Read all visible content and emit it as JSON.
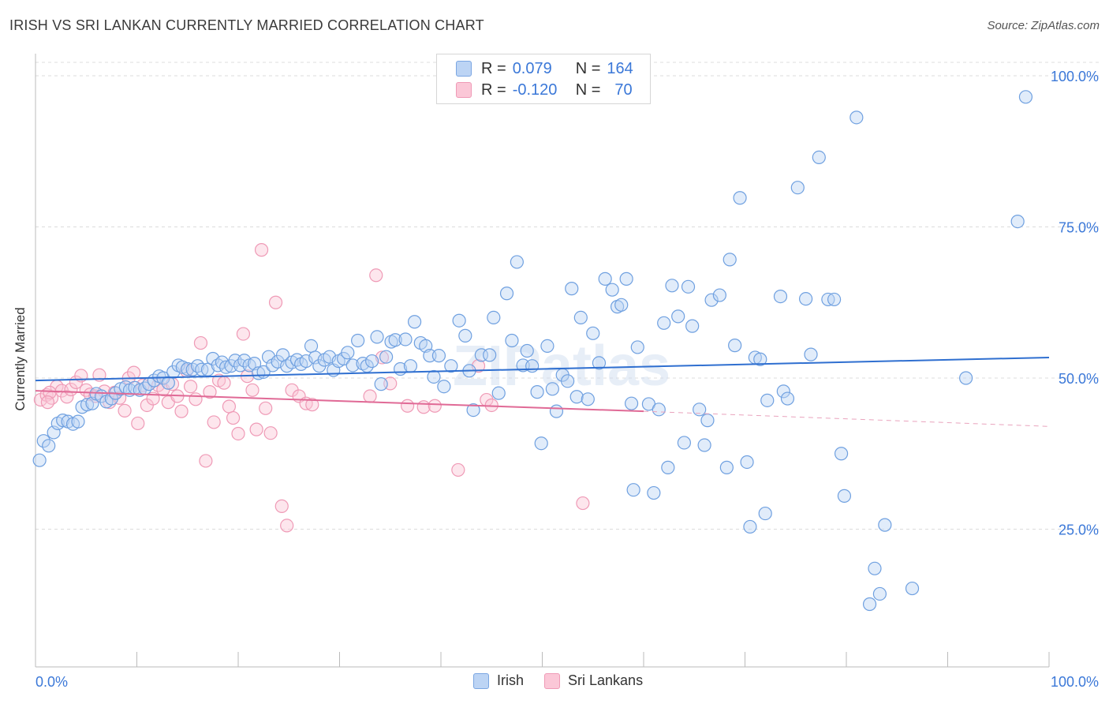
{
  "title": "IRISH VS SRI LANKAN CURRENTLY MARRIED CORRELATION CHART",
  "source": "Source: ZipAtlas.com",
  "watermark": "ZIPatlas",
  "legend": {
    "r_label": "R =",
    "n_label": "N =",
    "rows": [
      {
        "r": "0.079",
        "n": "164"
      },
      {
        "r": "-0.120",
        "n": "70"
      }
    ]
  },
  "bottom_legend": [
    "Irish",
    "Sri Lankans"
  ],
  "chart_data": {
    "type": "scatter",
    "title": "IRISH VS SRI LANKAN CURRENTLY MARRIED CORRELATION CHART",
    "xlabel": "",
    "ylabel": "Currently Married",
    "xlim": [
      0,
      100
    ],
    "ylim": [
      0,
      100
    ],
    "x_tick_labels": [
      "0.0%",
      "100.0%"
    ],
    "y_ticks": [
      25,
      50,
      75,
      100
    ],
    "y_tick_labels": [
      "25.0%",
      "50.0%",
      "75.0%",
      "100.0%"
    ],
    "grid": "horizontal dashed",
    "legend_position": "top-center",
    "colors": {
      "irish": "#6fa0e0",
      "irish_line": "#2f6fd0",
      "srilankan": "#f0a0bc",
      "srilankan_line": "#e06a96"
    },
    "series": [
      {
        "name": "Irish",
        "R": 0.079,
        "N": 164,
        "trend": {
          "x": [
            0,
            100
          ],
          "y": [
            49.6,
            53.4
          ]
        },
        "points": [
          [
            0.4,
            36.4
          ],
          [
            0.8,
            39.6
          ],
          [
            1.3,
            38.8
          ],
          [
            1.8,
            41.0
          ],
          [
            2.2,
            42.5
          ],
          [
            2.7,
            43.0
          ],
          [
            3.2,
            42.8
          ],
          [
            3.7,
            42.4
          ],
          [
            4.2,
            42.8
          ],
          [
            4.6,
            45.2
          ],
          [
            5.1,
            45.6
          ],
          [
            5.6,
            45.8
          ],
          [
            6.0,
            47.4
          ],
          [
            6.5,
            47.0
          ],
          [
            7.0,
            46.1
          ],
          [
            7.5,
            46.6
          ],
          [
            7.9,
            47.5
          ],
          [
            8.4,
            48.2
          ],
          [
            8.9,
            48.5
          ],
          [
            9.3,
            48.0
          ],
          [
            9.8,
            48.4
          ],
          [
            10.3,
            48.0
          ],
          [
            10.8,
            48.3
          ],
          [
            11.2,
            49.0
          ],
          [
            11.7,
            49.6
          ],
          [
            12.2,
            50.3
          ],
          [
            12.6,
            50.0
          ],
          [
            13.1,
            49.2
          ],
          [
            13.6,
            51.0
          ],
          [
            14.1,
            52.1
          ],
          [
            14.5,
            51.8
          ],
          [
            15.0,
            51.5
          ],
          [
            15.5,
            51.4
          ],
          [
            16.0,
            52.0
          ],
          [
            16.4,
            51.4
          ],
          [
            17.0,
            51.4
          ],
          [
            17.5,
            53.2
          ],
          [
            18.0,
            52.1
          ],
          [
            18.4,
            52.6
          ],
          [
            18.8,
            51.8
          ],
          [
            19.3,
            52.0
          ],
          [
            19.7,
            52.9
          ],
          [
            20.2,
            52.1
          ],
          [
            20.6,
            52.9
          ],
          [
            21.1,
            52.1
          ],
          [
            21.6,
            52.4
          ],
          [
            22.0,
            50.8
          ],
          [
            22.5,
            51.0
          ],
          [
            23.0,
            53.5
          ],
          [
            23.4,
            52.1
          ],
          [
            23.9,
            52.7
          ],
          [
            24.4,
            53.8
          ],
          [
            24.8,
            52.0
          ],
          [
            25.3,
            52.6
          ],
          [
            25.8,
            53.0
          ],
          [
            26.2,
            52.3
          ],
          [
            26.7,
            52.8
          ],
          [
            27.2,
            55.3
          ],
          [
            27.6,
            53.4
          ],
          [
            28.0,
            52.0
          ],
          [
            28.5,
            53.0
          ],
          [
            29.0,
            53.5
          ],
          [
            29.4,
            51.3
          ],
          [
            29.9,
            52.8
          ],
          [
            30.4,
            53.2
          ],
          [
            30.8,
            54.2
          ],
          [
            31.3,
            52.1
          ],
          [
            31.8,
            56.2
          ],
          [
            32.3,
            52.4
          ],
          [
            32.7,
            52.0
          ],
          [
            33.2,
            52.8
          ],
          [
            33.7,
            56.8
          ],
          [
            34.1,
            49.0
          ],
          [
            34.6,
            53.5
          ],
          [
            35.1,
            56.0
          ],
          [
            35.5,
            56.3
          ],
          [
            36.0,
            51.5
          ],
          [
            36.5,
            56.4
          ],
          [
            37.0,
            52.0
          ],
          [
            37.4,
            59.3
          ],
          [
            38.0,
            55.8
          ],
          [
            38.5,
            55.3
          ],
          [
            38.9,
            53.7
          ],
          [
            39.3,
            50.2
          ],
          [
            39.8,
            53.7
          ],
          [
            40.3,
            48.6
          ],
          [
            41.0,
            52.0
          ],
          [
            41.8,
            59.5
          ],
          [
            42.4,
            57.0
          ],
          [
            42.8,
            51.2
          ],
          [
            43.2,
            44.7
          ],
          [
            44.0,
            53.8
          ],
          [
            44.8,
            53.8
          ],
          [
            45.2,
            60.0
          ],
          [
            45.7,
            47.5
          ],
          [
            46.5,
            64.0
          ],
          [
            47.0,
            56.2
          ],
          [
            47.5,
            69.2
          ],
          [
            48.1,
            52.1
          ],
          [
            48.5,
            54.5
          ],
          [
            49.0,
            52.0
          ],
          [
            49.5,
            47.7
          ],
          [
            49.9,
            39.2
          ],
          [
            50.5,
            55.3
          ],
          [
            51.0,
            48.2
          ],
          [
            51.4,
            44.5
          ],
          [
            52.0,
            50.5
          ],
          [
            52.5,
            49.5
          ],
          [
            52.9,
            64.8
          ],
          [
            53.4,
            46.9
          ],
          [
            53.8,
            60.0
          ],
          [
            54.5,
            46.5
          ],
          [
            55.0,
            57.4
          ],
          [
            55.6,
            52.5
          ],
          [
            56.2,
            66.4
          ],
          [
            56.9,
            64.6
          ],
          [
            57.4,
            61.8
          ],
          [
            57.8,
            62.1
          ],
          [
            58.3,
            66.4
          ],
          [
            58.8,
            45.8
          ],
          [
            59.0,
            31.5
          ],
          [
            59.4,
            55.1
          ],
          [
            60.5,
            45.7
          ],
          [
            61.0,
            31.0
          ],
          [
            61.5,
            44.8
          ],
          [
            62.0,
            59.1
          ],
          [
            62.4,
            35.2
          ],
          [
            62.8,
            65.3
          ],
          [
            63.4,
            60.2
          ],
          [
            64.0,
            39.3
          ],
          [
            64.4,
            65.1
          ],
          [
            64.8,
            58.6
          ],
          [
            65.5,
            44.8
          ],
          [
            66.0,
            38.9
          ],
          [
            66.3,
            43.0
          ],
          [
            66.7,
            62.9
          ],
          [
            67.5,
            63.7
          ],
          [
            68.2,
            35.2
          ],
          [
            68.5,
            69.6
          ],
          [
            69.0,
            55.4
          ],
          [
            69.5,
            79.8
          ],
          [
            70.2,
            36.1
          ],
          [
            70.5,
            25.4
          ],
          [
            71.0,
            53.4
          ],
          [
            71.5,
            53.1
          ],
          [
            72.0,
            27.6
          ],
          [
            72.2,
            46.3
          ],
          [
            73.5,
            63.5
          ],
          [
            73.8,
            47.8
          ],
          [
            74.2,
            46.6
          ],
          [
            75.2,
            81.5
          ],
          [
            76.0,
            63.1
          ],
          [
            76.5,
            53.9
          ],
          [
            77.3,
            86.5
          ],
          [
            78.2,
            63.0
          ],
          [
            78.8,
            63.0
          ],
          [
            79.5,
            37.5
          ],
          [
            79.8,
            30.5
          ],
          [
            81.0,
            93.1
          ],
          [
            82.3,
            12.6
          ],
          [
            82.8,
            18.5
          ],
          [
            83.3,
            14.3
          ],
          [
            83.8,
            25.7
          ],
          [
            86.5,
            15.2
          ],
          [
            91.8,
            50.0
          ],
          [
            96.9,
            75.9
          ],
          [
            97.7,
            96.5
          ]
        ]
      },
      {
        "name": "Sri Lankans",
        "R": -0.12,
        "N": 70,
        "trend": {
          "x": [
            0,
            60
          ],
          "y": [
            47.9,
            44.5
          ]
        },
        "trend_extension": {
          "x": [
            60,
            100
          ],
          "y": [
            44.5,
            42.0
          ]
        },
        "points": [
          [
            0.5,
            46.4
          ],
          [
            1.1,
            47.2
          ],
          [
            1.6,
            46.7
          ],
          [
            2.1,
            48.6
          ],
          [
            2.6,
            47.9
          ],
          [
            3.1,
            46.9
          ],
          [
            3.5,
            48.1
          ],
          [
            4.0,
            49.3
          ],
          [
            4.5,
            50.4
          ],
          [
            5.0,
            48.0
          ],
          [
            5.4,
            47.3
          ],
          [
            5.9,
            47.0
          ],
          [
            6.3,
            50.5
          ],
          [
            6.8,
            47.8
          ],
          [
            7.3,
            46.0
          ],
          [
            7.8,
            47.6
          ],
          [
            8.3,
            46.7
          ],
          [
            8.8,
            44.6
          ],
          [
            9.2,
            50.0
          ],
          [
            9.7,
            50.9
          ],
          [
            10.1,
            42.5
          ],
          [
            10.6,
            48.8
          ],
          [
            11.0,
            45.5
          ],
          [
            11.6,
            46.6
          ],
          [
            12.1,
            48.8
          ],
          [
            12.6,
            48.1
          ],
          [
            13.1,
            46.0
          ],
          [
            13.5,
            49.0
          ],
          [
            14.0,
            47.0
          ],
          [
            14.4,
            44.5
          ],
          [
            14.9,
            51.2
          ],
          [
            15.3,
            48.6
          ],
          [
            15.8,
            46.5
          ],
          [
            16.3,
            55.8
          ],
          [
            16.8,
            36.3
          ],
          [
            17.2,
            47.7
          ],
          [
            17.6,
            42.7
          ],
          [
            18.1,
            49.6
          ],
          [
            18.6,
            49.2
          ],
          [
            19.1,
            45.3
          ],
          [
            19.5,
            43.4
          ],
          [
            20.0,
            40.8
          ],
          [
            20.5,
            57.3
          ],
          [
            20.9,
            50.3
          ],
          [
            21.4,
            48.0
          ],
          [
            21.8,
            41.5
          ],
          [
            22.3,
            71.2
          ],
          [
            22.7,
            45.0
          ],
          [
            23.2,
            40.9
          ],
          [
            23.7,
            62.5
          ],
          [
            24.3,
            28.8
          ],
          [
            24.8,
            25.6
          ],
          [
            25.3,
            48.0
          ],
          [
            26.0,
            47.0
          ],
          [
            26.7,
            45.8
          ],
          [
            27.3,
            45.6
          ],
          [
            33.0,
            47.0
          ],
          [
            33.6,
            67.0
          ],
          [
            34.2,
            53.4
          ],
          [
            35.0,
            49.1
          ],
          [
            36.7,
            45.4
          ],
          [
            38.3,
            45.2
          ],
          [
            39.4,
            45.4
          ],
          [
            41.7,
            34.8
          ],
          [
            43.7,
            52.0
          ],
          [
            44.5,
            46.4
          ],
          [
            45.0,
            45.5
          ],
          [
            54.0,
            29.3
          ],
          [
            1.4,
            47.6
          ],
          [
            1.2,
            46.0
          ]
        ]
      }
    ]
  }
}
